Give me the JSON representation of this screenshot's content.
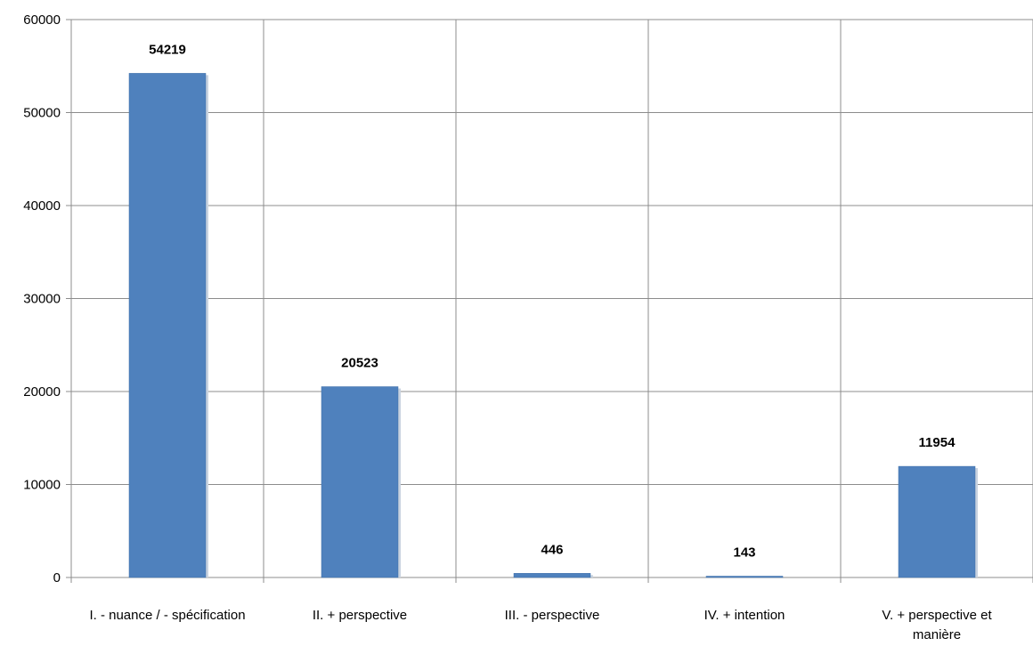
{
  "chart_data": {
    "type": "bar",
    "categories": [
      [
        "I. - nuance  / - spécification"
      ],
      [
        "II. + perspective"
      ],
      [
        "III. - perspective"
      ],
      [
        "IV. + intention"
      ],
      [
        "V. + perspective et",
        "manière"
      ]
    ],
    "values": [
      54219,
      20523,
      446,
      143,
      11954
    ],
    "data_labels": [
      "54219",
      "20523",
      "446",
      "143",
      "11954"
    ],
    "ylim": [
      0,
      60000
    ],
    "yticks": [
      0,
      10000,
      20000,
      30000,
      40000,
      50000,
      60000
    ],
    "grid": "on",
    "legend": "none",
    "colors": {
      "bar": "#4f81bd",
      "bar_edge": "#3d6ea8",
      "grid": "#8c8c8c",
      "axis": "#8c8c8c"
    }
  }
}
